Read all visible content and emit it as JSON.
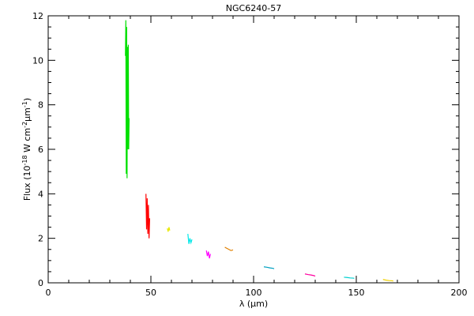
{
  "chart_data": {
    "type": "line",
    "title": "NGC6240-57",
    "xlabel": "λ (μm)",
    "ylabel": [
      "Flux (10",
      "-18",
      " W cm",
      "-2",
      "μm",
      "-1",
      ")"
    ],
    "xlim": [
      0,
      200
    ],
    "xticks": [
      0,
      50,
      100,
      150,
      200
    ],
    "xminorticks": [
      10,
      20,
      30,
      40,
      60,
      70,
      80,
      90,
      110,
      120,
      130,
      140,
      160,
      170,
      180,
      190
    ],
    "ylim": [
      0,
      12
    ],
    "yticks": [
      0,
      2,
      4,
      6,
      8,
      10,
      12
    ],
    "yminorticks": [
      0.5,
      1,
      1.5,
      2.5,
      3,
      3.5,
      4.5,
      5,
      5.5,
      6.5,
      7,
      7.5,
      8.5,
      9,
      9.5,
      10.5,
      11,
      11.5
    ],
    "series": [
      {
        "color": "#00e000",
        "x": [
          37.6,
          37.8,
          38.0,
          38.2,
          38.4,
          38.6,
          38.8,
          39.0,
          39.2,
          39.4
        ],
        "values": [
          10.2,
          11.8,
          4.9,
          11.5,
          4.7,
          10.6,
          6.0,
          10.7,
          6.0,
          7.4
        ]
      },
      {
        "color": "#ff0000",
        "x": [
          47.6,
          47.9,
          48.2,
          48.5,
          48.8,
          49.1,
          49.4
        ],
        "values": [
          4.0,
          2.4,
          3.8,
          2.2,
          3.5,
          2.0,
          2.9
        ]
      },
      {
        "color": "#e8e800",
        "x": [
          58.0,
          58.4,
          58.8,
          59.2
        ],
        "values": [
          2.45,
          2.3,
          2.5,
          2.35
        ]
      },
      {
        "color": "#00e8e8",
        "x": [
          68.0,
          68.5,
          69.0,
          69.5,
          70.0
        ],
        "values": [
          2.2,
          1.75,
          2.0,
          1.8,
          1.95
        ]
      },
      {
        "color": "#ff00ff",
        "x": [
          77.0,
          77.5,
          78.0,
          78.5,
          79.0
        ],
        "values": [
          1.45,
          1.2,
          1.4,
          1.1,
          1.3
        ]
      },
      {
        "color": "#e08000",
        "x": [
          86.0,
          87.0,
          88.0,
          89.0,
          90.0
        ],
        "values": [
          1.6,
          1.55,
          1.5,
          1.45,
          1.48
        ]
      },
      {
        "color": "#00a0c0",
        "x": [
          105.0,
          106.5,
          108.0,
          109.5,
          110.0
        ],
        "values": [
          0.72,
          0.7,
          0.67,
          0.65,
          0.63
        ]
      },
      {
        "color": "#ff00a0",
        "x": [
          125.0,
          126.5,
          128.0,
          129.5,
          130.0
        ],
        "values": [
          0.4,
          0.37,
          0.35,
          0.32,
          0.3
        ]
      },
      {
        "color": "#00d0d0",
        "x": [
          144.0,
          145.5,
          147.0,
          148.5,
          149.0
        ],
        "values": [
          0.25,
          0.24,
          0.22,
          0.21,
          0.2
        ]
      },
      {
        "color": "#f0d000",
        "x": [
          163.0,
          164.5,
          166.0,
          167.5,
          168.0
        ],
        "values": [
          0.15,
          0.12,
          0.1,
          0.09,
          0.08
        ]
      }
    ]
  }
}
